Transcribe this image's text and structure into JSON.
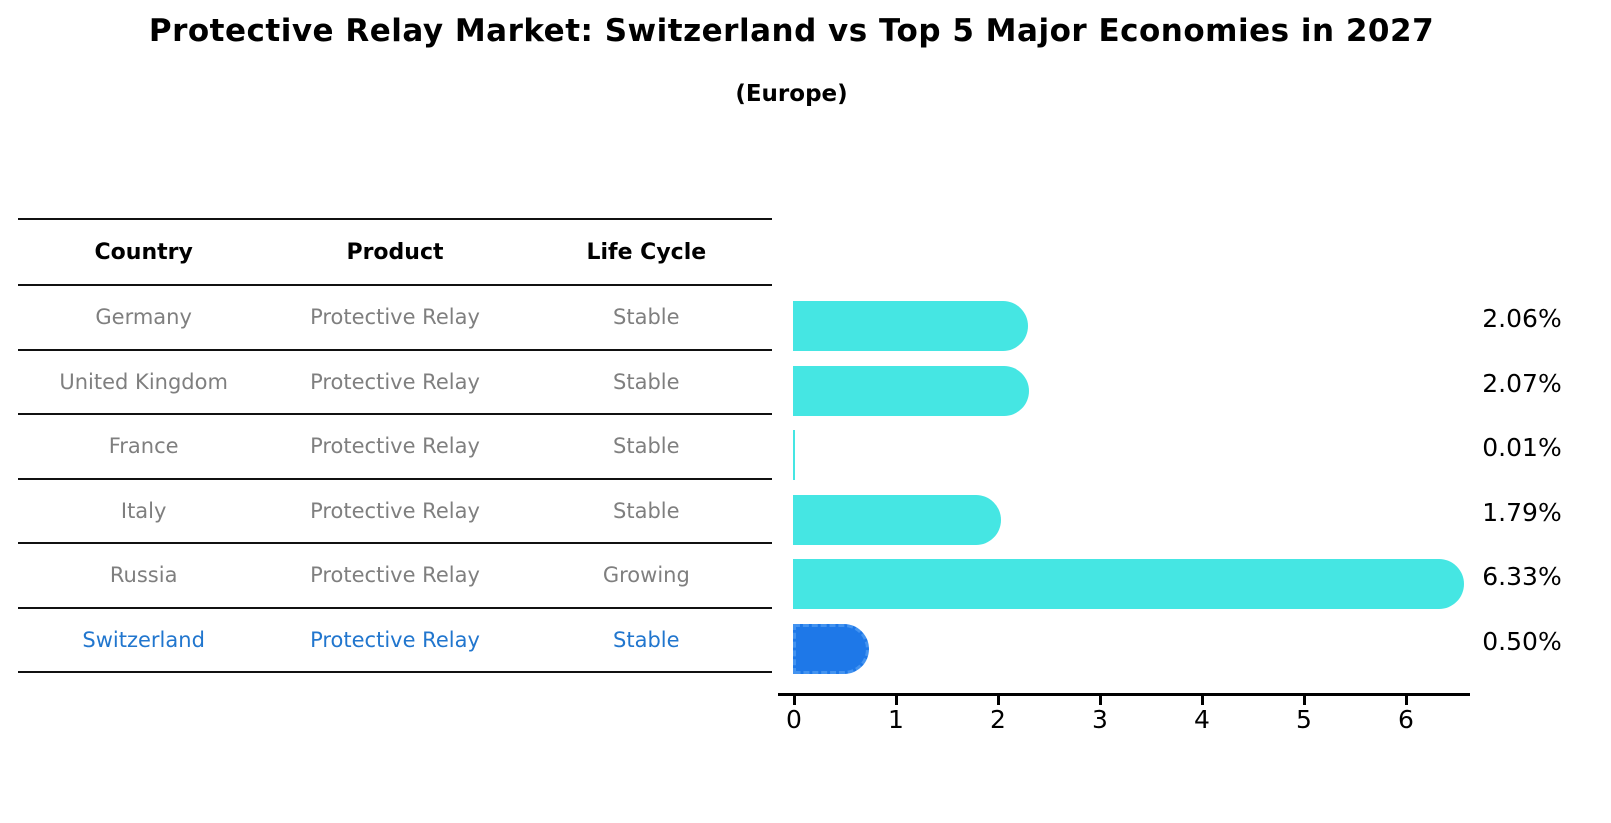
{
  "title": "Protective Relay Market: Switzerland vs Top 5 Major Economies in 2027",
  "subtitle": "(Europe)",
  "table": {
    "headers": [
      "Country",
      "Product",
      "Life Cycle"
    ],
    "rows": [
      {
        "country": "Germany",
        "product": "Protective Relay",
        "life_cycle": "Stable",
        "highlighted": false
      },
      {
        "country": "United Kingdom",
        "product": "Protective Relay",
        "life_cycle": "Stable",
        "highlighted": false
      },
      {
        "country": "France",
        "product": "Protective Relay",
        "life_cycle": "Stable",
        "highlighted": false
      },
      {
        "country": "Italy",
        "product": "Protective Relay",
        "life_cycle": "Stable",
        "highlighted": false
      },
      {
        "country": "Russia",
        "product": "Protective Relay",
        "life_cycle": "Growing",
        "highlighted": false
      },
      {
        "country": "Switzerland",
        "product": "Protective Relay",
        "life_cycle": "Stable",
        "highlighted": true
      }
    ]
  },
  "chart_data": {
    "type": "bar",
    "orientation": "horizontal",
    "title": "Protective Relay Market: Switzerland vs Top 5 Major Economies in 2027",
    "subtitle": "(Europe)",
    "categories": [
      "Germany",
      "United Kingdom",
      "France",
      "Italy",
      "Russia",
      "Switzerland"
    ],
    "values": [
      2.06,
      2.07,
      0.01,
      1.79,
      6.33,
      0.5
    ],
    "value_labels": [
      "2.06%",
      "2.07%",
      "0.01%",
      "1.79%",
      "6.33%",
      "0.50%"
    ],
    "highlighted_category": "Switzerland",
    "x_ticks": [
      0,
      1,
      2,
      3,
      4,
      5,
      6
    ],
    "xlim": [
      0,
      6.6
    ],
    "xlabel": "",
    "ylabel": "",
    "grid": false,
    "legend": null,
    "colors": {
      "bar": "#45e6e3",
      "highlight_bar": "#1e78e8",
      "highlight_bar_edge": "#4393f0",
      "highlight_text": "#2176ce",
      "row_text": "#7f7f7f",
      "axis": "#000000",
      "label_text": "#000000"
    }
  }
}
